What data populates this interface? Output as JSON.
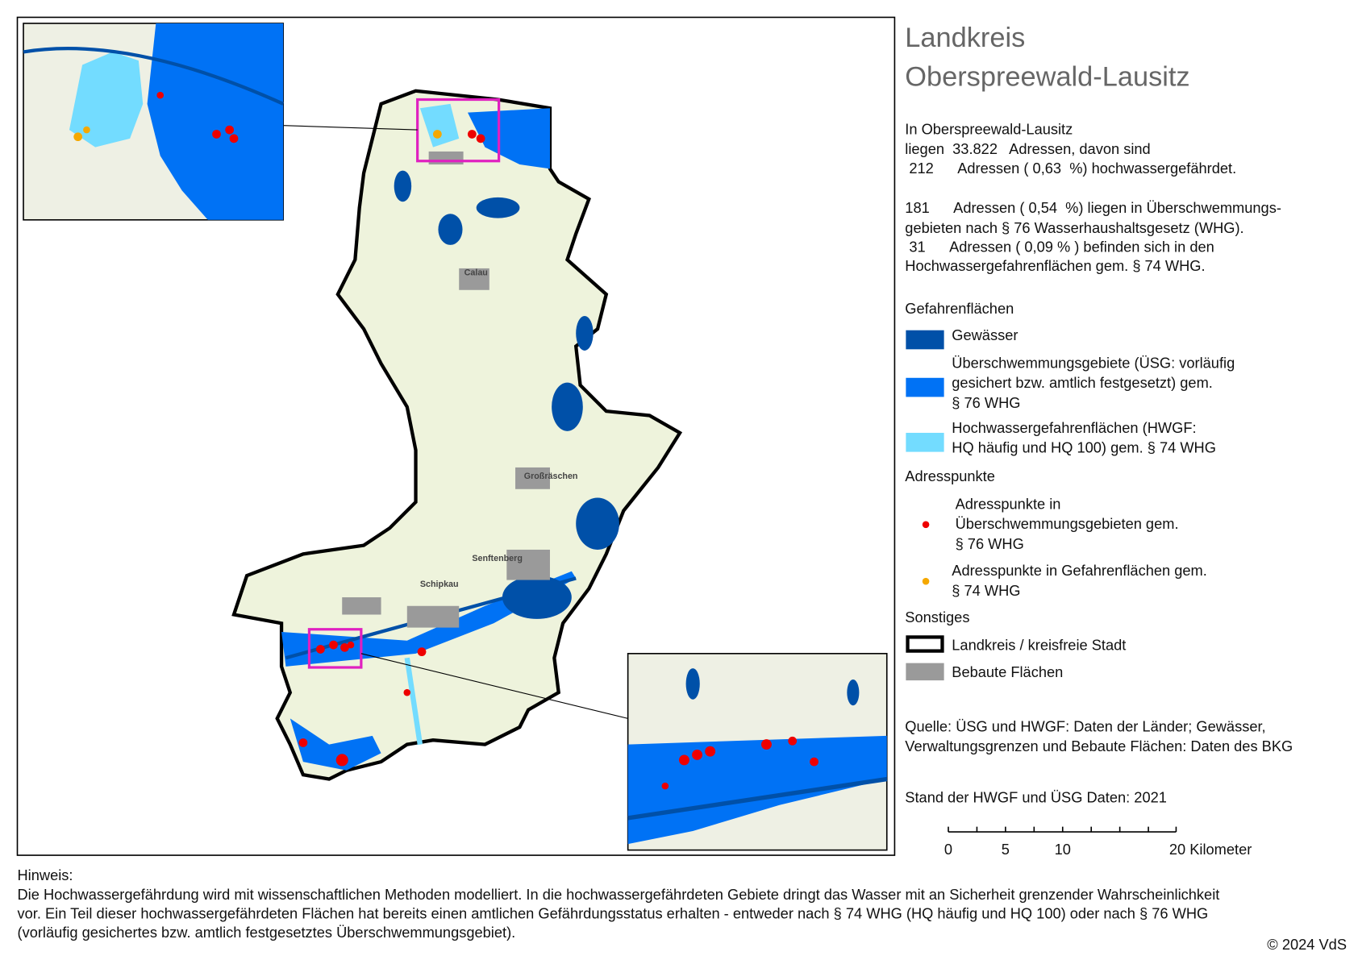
{
  "title": {
    "line1": "Landkreis",
    "line2": "Oberspreewald-Lausitz"
  },
  "summary": {
    "lines": [
      "In Oberspreewald-Lausitz",
      "liegen  33.822   Adressen, davon sind",
      " 212      Adressen ( 0,63  %) hochwassergefährdet.",
      "181      Adressen ( 0,54  %) liegen in Überschwemmungs-",
      "gebieten nach § 76 Wasserhaushaltsgesetz (WHG).",
      " 31      Adressen ( 0,09 % ) befinden sich in den",
      "Hochwassergefahrenflächen gem. § 74 WHG."
    ]
  },
  "legend": {
    "hazard_heading": "Gefahrenflächen",
    "hazard_items": [
      {
        "lines": [
          "Gewässer"
        ],
        "color": "#0050a8"
      },
      {
        "lines": [
          "Überschwemmungsgebiete (ÜSG: vorläufig",
          "gesichert bzw. amtlich festgesetzt) gem.",
          "§ 76 WHG"
        ],
        "color": "#0072f5"
      },
      {
        "lines": [
          "Hochwassergefahrenflächen (HWGF:",
          "HQ häufig und HQ 100) gem. § 74 WHG"
        ],
        "color": "#73dcff"
      }
    ],
    "points_heading": "Adresspunkte",
    "point_items": [
      {
        "lines": [
          "Adresspunkte in",
          "Überschwemmungsgebieten gem.",
          "§ 76 WHG"
        ],
        "color": "#ee0000"
      },
      {
        "lines": [
          "Adresspunkte in Gefahrenflächen gem.",
          "§ 74 WHG"
        ],
        "color": "#f5a800"
      }
    ],
    "other_heading": "Sonstiges",
    "other_items": [
      {
        "lines": [
          "Landkreis / kreisfreie Stadt"
        ]
      },
      {
        "lines": [
          "Bebaute Flächen"
        ],
        "color": "#9a9a9a"
      }
    ]
  },
  "source": {
    "lines": [
      "Quelle: ÜSG und HWGF: Daten der Länder; Gewässer,",
      "Verwaltungsgrenzen und Bebaute Flächen: Daten des BKG"
    ]
  },
  "stand": "Stand der HWGF und ÜSG Daten:  2021",
  "scale": {
    "labels": [
      "0",
      "5",
      "10",
      "20 Kilometer"
    ]
  },
  "map_labels": [
    "Calau",
    "Großräschen",
    "Senftenberg",
    "Schipkau"
  ],
  "note": {
    "heading": "Hinweis:",
    "lines": [
      "Die Hochwassergefährdung wird mit wissenschaftlichen Methoden modelliert. In die hochwassergefährdeten Gebiete dringt das Wasser mit an Sicherheit grenzender Wahrscheinlichkeit",
      "vor. Ein Teil dieser hochwassergefährdeten Flächen hat bereits einen amtlichen Gefährdungsstatus erhalten - entweder nach § 74 WHG (HQ häufig und HQ 100) oder nach § 76 WHG",
      "(vorläufig gesichertes bzw. amtlich festgesetztes Überschwemmungsgebiet)."
    ]
  },
  "copyright": "© 2024 VdS"
}
